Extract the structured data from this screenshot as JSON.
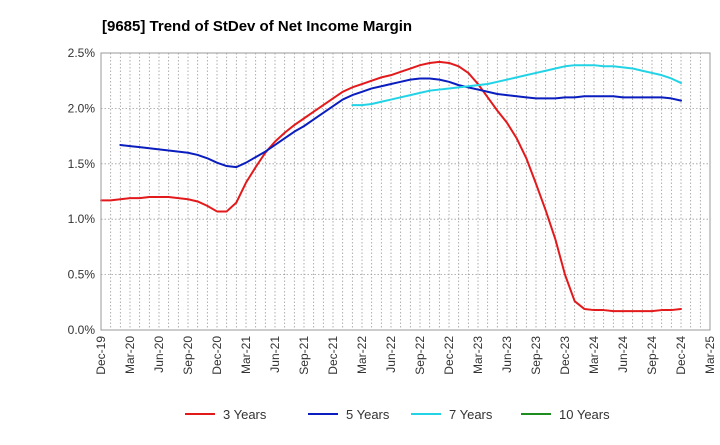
{
  "chart_data": {
    "type": "line",
    "title": "[9685]  Trend of StDev of Net Income Margin",
    "xlabel": "",
    "ylabel": "",
    "ylim": [
      0,
      2.5
    ],
    "y_ticks": [
      "0.0%",
      "0.5%",
      "1.0%",
      "1.5%",
      "2.0%",
      "2.5%"
    ],
    "x_ticks": [
      "Dec-19",
      "Mar-20",
      "Jun-20",
      "Sep-20",
      "Dec-20",
      "Mar-21",
      "Jun-21",
      "Sep-21",
      "Dec-21",
      "Mar-22",
      "Jun-22",
      "Sep-22",
      "Dec-22",
      "Mar-23",
      "Jun-23",
      "Sep-23",
      "Dec-23",
      "Mar-24",
      "Jun-24",
      "Sep-24",
      "Dec-24",
      "Mar-25"
    ],
    "grid": true,
    "legend_position": "bottom",
    "series": [
      {
        "name": "3 Years",
        "color": "#e31a1c",
        "points": [
          [
            "Dec-19",
            1.17
          ],
          [
            "Jan-20",
            1.17
          ],
          [
            "Feb-20",
            1.18
          ],
          [
            "Mar-20",
            1.19
          ],
          [
            "Apr-20",
            1.19
          ],
          [
            "May-20",
            1.2
          ],
          [
            "Jun-20",
            1.2
          ],
          [
            "Jul-20",
            1.2
          ],
          [
            "Aug-20",
            1.19
          ],
          [
            "Sep-20",
            1.18
          ],
          [
            "Oct-20",
            1.16
          ],
          [
            "Nov-20",
            1.12
          ],
          [
            "Dec-20",
            1.07
          ],
          [
            "Jan-21",
            1.07
          ],
          [
            "Feb-21",
            1.15
          ],
          [
            "Mar-21",
            1.33
          ],
          [
            "Apr-21",
            1.47
          ],
          [
            "May-21",
            1.6
          ],
          [
            "Jun-21",
            1.7
          ],
          [
            "Jul-21",
            1.78
          ],
          [
            "Aug-21",
            1.85
          ],
          [
            "Sep-21",
            1.91
          ],
          [
            "Oct-21",
            1.97
          ],
          [
            "Nov-21",
            2.03
          ],
          [
            "Dec-21",
            2.09
          ],
          [
            "Jan-22",
            2.15
          ],
          [
            "Feb-22",
            2.19
          ],
          [
            "Mar-22",
            2.22
          ],
          [
            "Apr-22",
            2.25
          ],
          [
            "May-22",
            2.28
          ],
          [
            "Jun-22",
            2.3
          ],
          [
            "Jul-22",
            2.33
          ],
          [
            "Aug-22",
            2.36
          ],
          [
            "Sep-22",
            2.39
          ],
          [
            "Oct-22",
            2.41
          ],
          [
            "Nov-22",
            2.42
          ],
          [
            "Dec-22",
            2.41
          ],
          [
            "Jan-23",
            2.38
          ],
          [
            "Feb-23",
            2.32
          ],
          [
            "Mar-23",
            2.22
          ],
          [
            "Apr-23",
            2.1
          ],
          [
            "May-23",
            1.98
          ],
          [
            "Jun-23",
            1.87
          ],
          [
            "Jul-23",
            1.73
          ],
          [
            "Aug-23",
            1.55
          ],
          [
            "Sep-23",
            1.32
          ],
          [
            "Oct-23",
            1.08
          ],
          [
            "Nov-23",
            0.82
          ],
          [
            "Dec-23",
            0.5
          ],
          [
            "Jan-24",
            0.26
          ],
          [
            "Feb-24",
            0.19
          ],
          [
            "Mar-24",
            0.18
          ],
          [
            "Apr-24",
            0.18
          ],
          [
            "May-24",
            0.17
          ],
          [
            "Jun-24",
            0.17
          ],
          [
            "Jul-24",
            0.17
          ],
          [
            "Aug-24",
            0.17
          ],
          [
            "Sep-24",
            0.17
          ],
          [
            "Oct-24",
            0.18
          ],
          [
            "Nov-24",
            0.18
          ],
          [
            "Dec-24",
            0.19
          ]
        ]
      },
      {
        "name": "5 Years",
        "color": "#0a1dbe",
        "points": [
          [
            "Feb-20",
            1.67
          ],
          [
            "Mar-20",
            1.66
          ],
          [
            "Apr-20",
            1.65
          ],
          [
            "May-20",
            1.64
          ],
          [
            "Jun-20",
            1.63
          ],
          [
            "Jul-20",
            1.62
          ],
          [
            "Aug-20",
            1.61
          ],
          [
            "Sep-20",
            1.6
          ],
          [
            "Oct-20",
            1.58
          ],
          [
            "Nov-20",
            1.55
          ],
          [
            "Dec-20",
            1.51
          ],
          [
            "Jan-21",
            1.48
          ],
          [
            "Feb-21",
            1.47
          ],
          [
            "Mar-21",
            1.51
          ],
          [
            "Apr-21",
            1.56
          ],
          [
            "May-21",
            1.61
          ],
          [
            "Jun-21",
            1.67
          ],
          [
            "Jul-21",
            1.73
          ],
          [
            "Aug-21",
            1.79
          ],
          [
            "Sep-21",
            1.84
          ],
          [
            "Oct-21",
            1.9
          ],
          [
            "Nov-21",
            1.96
          ],
          [
            "Dec-21",
            2.02
          ],
          [
            "Jan-22",
            2.08
          ],
          [
            "Feb-22",
            2.12
          ],
          [
            "Mar-22",
            2.15
          ],
          [
            "Apr-22",
            2.18
          ],
          [
            "May-22",
            2.2
          ],
          [
            "Jun-22",
            2.22
          ],
          [
            "Jul-22",
            2.24
          ],
          [
            "Aug-22",
            2.26
          ],
          [
            "Sep-22",
            2.27
          ],
          [
            "Oct-22",
            2.27
          ],
          [
            "Nov-22",
            2.26
          ],
          [
            "Dec-22",
            2.24
          ],
          [
            "Jan-23",
            2.21
          ],
          [
            "Feb-23",
            2.19
          ],
          [
            "Mar-23",
            2.17
          ],
          [
            "Apr-23",
            2.15
          ],
          [
            "May-23",
            2.13
          ],
          [
            "Jun-23",
            2.12
          ],
          [
            "Jul-23",
            2.11
          ],
          [
            "Aug-23",
            2.1
          ],
          [
            "Sep-23",
            2.09
          ],
          [
            "Oct-23",
            2.09
          ],
          [
            "Nov-23",
            2.09
          ],
          [
            "Dec-23",
            2.1
          ],
          [
            "Jan-24",
            2.1
          ],
          [
            "Feb-24",
            2.11
          ],
          [
            "Mar-24",
            2.11
          ],
          [
            "Apr-24",
            2.11
          ],
          [
            "May-24",
            2.11
          ],
          [
            "Jun-24",
            2.1
          ],
          [
            "Jul-24",
            2.1
          ],
          [
            "Aug-24",
            2.1
          ],
          [
            "Sep-24",
            2.1
          ],
          [
            "Oct-24",
            2.1
          ],
          [
            "Nov-24",
            2.09
          ],
          [
            "Dec-24",
            2.07
          ]
        ]
      },
      {
        "name": "7 Years",
        "color": "#22d3e6",
        "points": [
          [
            "Feb-22",
            2.03
          ],
          [
            "Mar-22",
            2.03
          ],
          [
            "Apr-22",
            2.04
          ],
          [
            "May-22",
            2.06
          ],
          [
            "Jun-22",
            2.08
          ],
          [
            "Jul-22",
            2.1
          ],
          [
            "Aug-22",
            2.12
          ],
          [
            "Sep-22",
            2.14
          ],
          [
            "Oct-22",
            2.16
          ],
          [
            "Nov-22",
            2.17
          ],
          [
            "Dec-22",
            2.18
          ],
          [
            "Jan-23",
            2.19
          ],
          [
            "Feb-23",
            2.2
          ],
          [
            "Mar-23",
            2.21
          ],
          [
            "Apr-23",
            2.22
          ],
          [
            "May-23",
            2.24
          ],
          [
            "Jun-23",
            2.26
          ],
          [
            "Jul-23",
            2.28
          ],
          [
            "Aug-23",
            2.3
          ],
          [
            "Sep-23",
            2.32
          ],
          [
            "Oct-23",
            2.34
          ],
          [
            "Nov-23",
            2.36
          ],
          [
            "Dec-23",
            2.38
          ],
          [
            "Jan-24",
            2.39
          ],
          [
            "Feb-24",
            2.39
          ],
          [
            "Mar-24",
            2.39
          ],
          [
            "Apr-24",
            2.38
          ],
          [
            "May-24",
            2.38
          ],
          [
            "Jun-24",
            2.37
          ],
          [
            "Jul-24",
            2.36
          ],
          [
            "Aug-24",
            2.34
          ],
          [
            "Sep-24",
            2.32
          ],
          [
            "Oct-24",
            2.3
          ],
          [
            "Nov-24",
            2.27
          ],
          [
            "Dec-24",
            2.23
          ]
        ]
      },
      {
        "name": "10 Years",
        "color": "#1e8c1e",
        "points": []
      }
    ]
  }
}
